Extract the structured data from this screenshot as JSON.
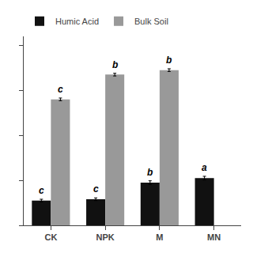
{
  "chart_data": {
    "type": "bar",
    "categories": [
      "CK",
      "NPK",
      "M",
      "MN"
    ],
    "series": [
      {
        "name": "Humic Acid",
        "color": "#111111",
        "values": [
          5.5,
          5.8,
          9.5,
          10.5
        ],
        "errors": [
          0.3,
          0.3,
          0.4,
          0.4
        ]
      },
      {
        "name": "Bulk Soil",
        "color": "#999999",
        "values": [
          28.0,
          33.5,
          34.5,
          null
        ],
        "errors": [
          0.3,
          0.3,
          0.3,
          null
        ]
      }
    ],
    "annotations": [
      {
        "category": "CK",
        "series": "Humic Acid",
        "text": "c"
      },
      {
        "category": "NPK",
        "series": "Humic Acid",
        "text": "c"
      },
      {
        "category": "M",
        "series": "Humic Acid",
        "text": "b"
      },
      {
        "category": "MN",
        "series": "Humic Acid",
        "text": "a"
      },
      {
        "category": "CK",
        "series": "Bulk Soil",
        "text": "c"
      },
      {
        "category": "NPK",
        "series": "Bulk Soil",
        "text": "b"
      },
      {
        "category": "M",
        "series": "Bulk Soil",
        "text": "b"
      }
    ],
    "ylim": [
      0,
      42
    ],
    "yticks": [
      0,
      10,
      20,
      30,
      40
    ],
    "tick_labels": "x",
    "grid": false,
    "legend": "upper left"
  }
}
